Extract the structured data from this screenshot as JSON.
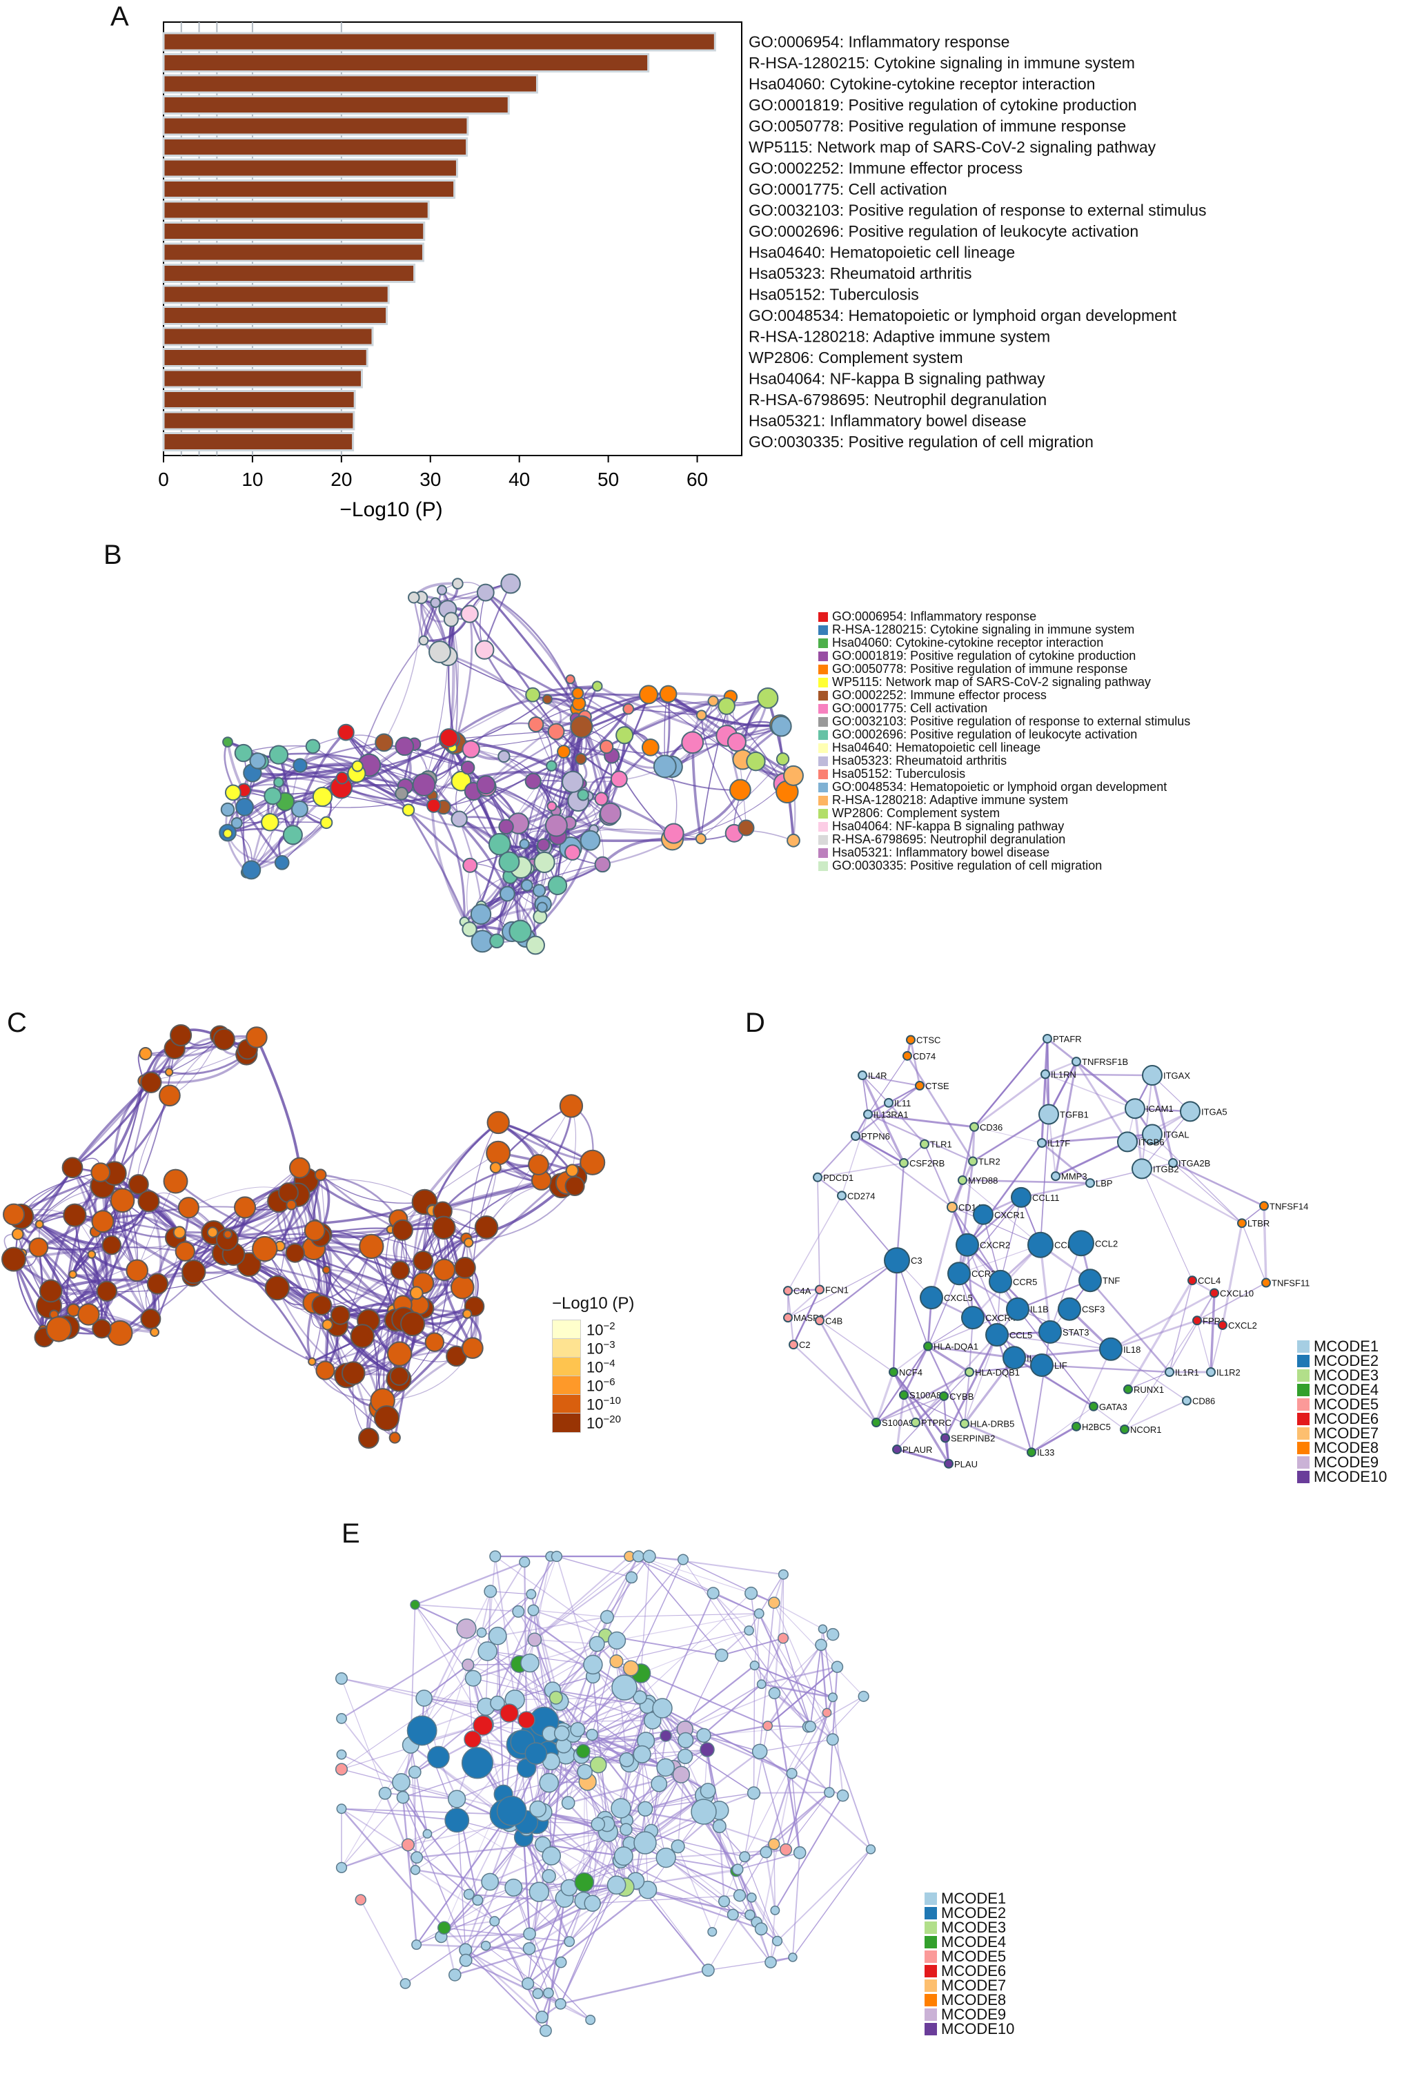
{
  "panels": {
    "a": "A",
    "b": "B",
    "c": "C",
    "d": "D",
    "e": "E"
  },
  "palette": {
    "bar_fill": "#8c3c1a",
    "bar_edge": "#cdd6dc",
    "edge": "#5b3fa0",
    "mcode": [
      "#a6cee3",
      "#1f78b4",
      "#b2df8a",
      "#33a02c",
      "#fb9a99",
      "#e31a1c",
      "#fdbf6f",
      "#ff7f00",
      "#cab2d6",
      "#6a3d9a"
    ]
  },
  "chart_data": [
    {
      "type": "bar",
      "orientation": "horizontal",
      "xlabel": "−Log10 (P)",
      "xlim": [
        0,
        65
      ],
      "xticks": [
        0,
        10,
        20,
        30,
        40,
        50,
        60
      ],
      "grid_x": [
        2,
        4,
        6,
        10,
        20
      ],
      "categories": [
        "GO:0006954: Inflammatory response",
        "R-HSA-1280215: Cytokine signaling in immune system",
        "Hsa04060: Cytokine-cytokine receptor interaction",
        "GO:0001819: Positive regulation of cytokine production",
        "GO:0050778: Positive regulation of immune response",
        "WP5115: Network map of SARS-CoV-2 signaling pathway",
        "GO:0002252: Immune effector process",
        "GO:0001775: Cell activation",
        "GO:0032103: Positive regulation of response to external stimulus",
        "GO:0002696: Positive regulation of leukocyte activation",
        "Hsa04640: Hematopoietic cell lineage",
        "Hsa05323: Rheumatoid arthritis",
        "Hsa05152: Tuberculosis",
        "GO:0048534: Hematopoietic or lymphoid organ development",
        "R-HSA-1280218: Adaptive immune system",
        "WP2806: Complement system",
        "Hsa04064: NF-kappa B signaling pathway",
        "R-HSA-6798695: Neutrophil degranulation",
        "Hsa05321: Inflammatory bowel disease",
        "GO:0030335: Positive regulation of cell migration"
      ],
      "values": [
        62,
        54.5,
        42,
        38.8,
        34.2,
        34.1,
        33,
        32.7,
        29.8,
        29.3,
        29.2,
        28.2,
        25.3,
        25.1,
        23.5,
        22.9,
        22.3,
        21.5,
        21.4,
        21.3
      ]
    },
    {
      "type": "legend",
      "entries": [
        {
          "label": "GO:0006954: Inflammatory response",
          "color": "#e41a1c"
        },
        {
          "label": "R-HSA-1280215: Cytokine signaling in immune system",
          "color": "#377eb8"
        },
        {
          "label": "Hsa04060: Cytokine-cytokine receptor interaction",
          "color": "#4daf4a"
        },
        {
          "label": "GO:0001819: Positive regulation of cytokine production",
          "color": "#984ea3"
        },
        {
          "label": "GO:0050778: Positive regulation of immune response",
          "color": "#ff7f00"
        },
        {
          "label": "WP5115: Network map of SARS-CoV-2 signaling pathway",
          "color": "#ffff33"
        },
        {
          "label": "GO:0002252: Immune effector process",
          "color": "#a65628"
        },
        {
          "label": "GO:0001775: Cell activation",
          "color": "#f781bf"
        },
        {
          "label": "GO:0032103: Positive regulation of response to external stimulus",
          "color": "#999999"
        },
        {
          "label": "GO:0002696: Positive regulation of leukocyte activation",
          "color": "#66c2a5"
        },
        {
          "label": "Hsa04640: Hematopoietic cell lineage",
          "color": "#ffffb3"
        },
        {
          "label": "Hsa05323: Rheumatoid arthritis",
          "color": "#bebada"
        },
        {
          "label": "Hsa05152: Tuberculosis",
          "color": "#fb8072"
        },
        {
          "label": "GO:0048534: Hematopoietic or lymphoid organ development",
          "color": "#80b1d3"
        },
        {
          "label": "R-HSA-1280218: Adaptive immune system",
          "color": "#fdb462"
        },
        {
          "label": "WP2806: Complement system",
          "color": "#b3de69"
        },
        {
          "label": "Hsa04064: NF-kappa B signaling pathway",
          "color": "#fccde5"
        },
        {
          "label": "R-HSA-6798695: Neutrophil degranulation",
          "color": "#d9d9d9"
        },
        {
          "label": "Hsa05321: Inflammatory bowel disease",
          "color": "#bc80bd"
        },
        {
          "label": "GO:0030335: Positive regulation of cell migration",
          "color": "#ccebc5"
        }
      ]
    },
    {
      "type": "colorbar",
      "title": "−Log10 (P)",
      "levels": [
        {
          "base": "10",
          "exp": "−2",
          "color": "#ffffcc"
        },
        {
          "base": "10",
          "exp": "−3",
          "color": "#fee391"
        },
        {
          "base": "10",
          "exp": "−4",
          "color": "#fec44f"
        },
        {
          "base": "10",
          "exp": "−6",
          "color": "#fe9929"
        },
        {
          "base": "10",
          "exp": "−10",
          "color": "#d95f0e"
        },
        {
          "base": "10",
          "exp": "−20",
          "color": "#993404"
        }
      ]
    },
    {
      "type": "network",
      "node_labels": [
        "CTSC",
        "PTAFR",
        "CD74",
        "TNFRSF1B",
        "IL1RN",
        "ITGAX",
        "IL4R",
        "CTSE",
        "ICAM1",
        "ITGA5",
        "IL11",
        "TGFB1",
        "IL13RA1",
        "CD36",
        "ITGAL",
        "ITGB6",
        "PTPN6",
        "TLR1",
        "IL17F",
        "ITGA2B",
        "CSF2RB",
        "TLR2",
        "MYD88",
        "MMP3",
        "LBP",
        "ITGB2",
        "PDCD1",
        "CD274",
        "CD14",
        "CCL11",
        "CXCR1",
        "TNFSF14",
        "LTBR",
        "CXCR2",
        "CCL20",
        "CCL2",
        "C3",
        "CCR2",
        "CCR5",
        "TNF",
        "CCL4",
        "CXCL10",
        "TNFSF11",
        "C4A",
        "FCN1",
        "CXCL5",
        "CXCR4",
        "IL1B",
        "CSF3",
        "MASP2",
        "C4B",
        "FPR1",
        "CXCL2",
        "CCL5",
        "STAT3",
        "C2",
        "IL18",
        "IL6",
        "LIF",
        "HLA-DQA1",
        "NCF4",
        "HLA-DQB1",
        "IL1R1",
        "IL1R2",
        "S100A8",
        "CYBB",
        "RUNX1",
        "GATA3",
        "CD86",
        "S100A9",
        "PTPRC",
        "HLA-DRB5",
        "H2BC5",
        "NCOR1",
        "SERPINB2",
        "PLAUR",
        "IL33",
        "PLAU"
      ],
      "legend": [
        "MCODE1",
        "MCODE2",
        "MCODE3",
        "MCODE4",
        "MCODE5",
        "MCODE6",
        "MCODE7",
        "MCODE8",
        "MCODE9",
        "MCODE10"
      ]
    },
    {
      "type": "network",
      "legend": [
        "MCODE1",
        "MCODE2",
        "MCODE3",
        "MCODE4",
        "MCODE5",
        "MCODE6",
        "MCODE7",
        "MCODE8",
        "MCODE9",
        "MCODE10"
      ]
    }
  ]
}
